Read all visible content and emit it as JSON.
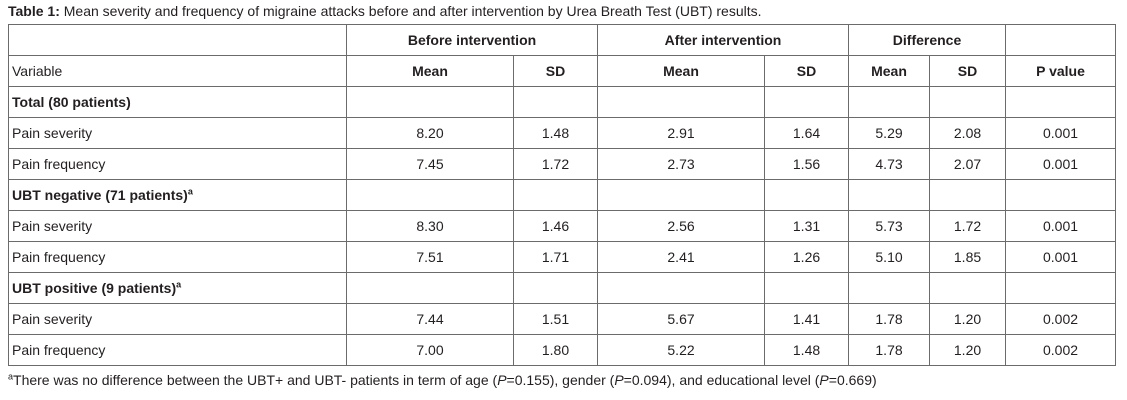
{
  "caption": {
    "label": "Table 1:",
    "text": " Mean severity and frequency of migraine attacks before and after intervention by Urea Breath Test (UBT) results."
  },
  "table": {
    "group_headers": [
      "Before intervention",
      "After intervention",
      "Difference"
    ],
    "columns": {
      "variable": "Variable",
      "mean": "Mean",
      "sd": "SD",
      "p_prefix": "P",
      "p_suffix": " value"
    },
    "groups": [
      {
        "label": "Total (80 patients)",
        "marker": "",
        "rows": [
          {
            "variable": "Pain severity",
            "before_mean": "8.20",
            "before_sd": "1.48",
            "after_mean": "2.91",
            "after_sd": "1.64",
            "diff_mean": "5.29",
            "diff_sd": "2.08",
            "p": "0.001"
          },
          {
            "variable": "Pain frequency",
            "before_mean": "7.45",
            "before_sd": "1.72",
            "after_mean": "2.73",
            "after_sd": "1.56",
            "diff_mean": "4.73",
            "diff_sd": "2.07",
            "p": "0.001"
          }
        ]
      },
      {
        "label": "UBT negative (71 patients)",
        "marker": "a",
        "rows": [
          {
            "variable": "Pain severity",
            "before_mean": "8.30",
            "before_sd": "1.46",
            "after_mean": "2.56",
            "after_sd": "1.31",
            "diff_mean": "5.73",
            "diff_sd": "1.72",
            "p": "0.001"
          },
          {
            "variable": "Pain frequency",
            "before_mean": "7.51",
            "before_sd": "1.71",
            "after_mean": "2.41",
            "after_sd": "1.26",
            "diff_mean": "5.10",
            "diff_sd": "1.85",
            "p": "0.001"
          }
        ]
      },
      {
        "label": "UBT positive (9 patients)",
        "marker": "a",
        "rows": [
          {
            "variable": "Pain severity",
            "before_mean": "7.44",
            "before_sd": "1.51",
            "after_mean": "5.67",
            "after_sd": "1.41",
            "diff_mean": "1.78",
            "diff_sd": "1.20",
            "p": "0.002"
          },
          {
            "variable": "Pain frequency",
            "before_mean": "7.00",
            "before_sd": "1.80",
            "after_mean": "5.22",
            "after_sd": "1.48",
            "diff_mean": "1.78",
            "diff_sd": "1.20",
            "p": "0.002"
          }
        ]
      }
    ]
  },
  "footnote": {
    "marker": "a",
    "text1": "There was no difference between the UBT+ and UBT- patients in term of age (",
    "p1_label": "P",
    "p1_value": "=0.155), gender (",
    "p2_label": "P",
    "p2_value": "=0.094), and educational level (",
    "p3_label": "P",
    "p3_value": "=0.669)"
  }
}
